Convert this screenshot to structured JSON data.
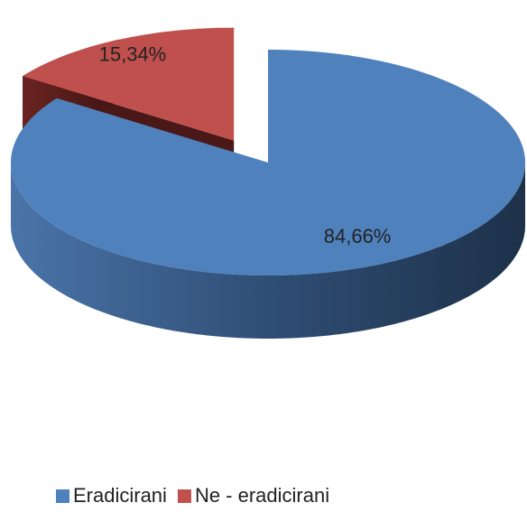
{
  "chart_data": {
    "type": "pie",
    "categories": [
      "Eradicirani",
      "Ne - eradicirani"
    ],
    "values": [
      84.66,
      15.34
    ],
    "value_labels": [
      "84,66%",
      "15,34%"
    ],
    "colors": [
      "#4f81bd",
      "#c0504d"
    ],
    "legend": "bottom"
  }
}
